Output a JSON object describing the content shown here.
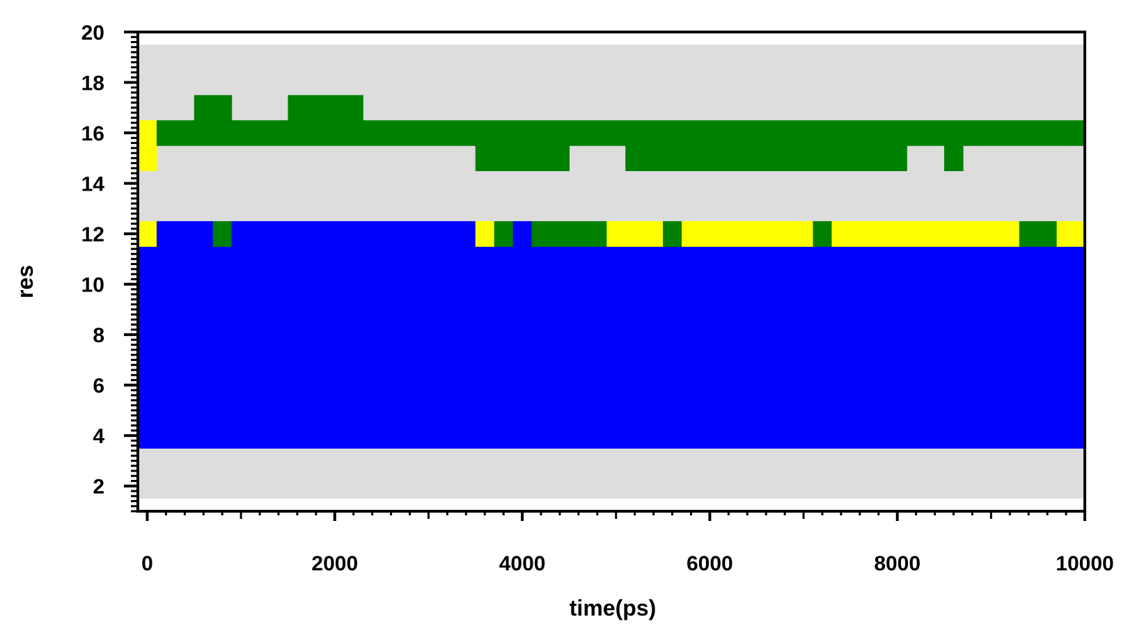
{
  "chart_data": {
    "type": "heatmap",
    "title": "",
    "xlabel": "time(ps)",
    "ylabel": "res",
    "xlim": [
      -100,
      10000
    ],
    "ylim": [
      1,
      20
    ],
    "x_ticks": [
      "0",
      "2000",
      "4000",
      "6000",
      "8000",
      "10000"
    ],
    "y_ticks": [
      "2",
      "4",
      "6",
      "8",
      "10",
      "12",
      "14",
      "16",
      "18",
      "20"
    ],
    "background_color": "#dddddd",
    "colors": {
      "blue": "#0000ff",
      "green": "#008000",
      "yellow": "#ffff00"
    },
    "data_extent": {
      "x": [
        -100,
        10000
      ],
      "y": [
        1.5,
        19.5
      ]
    },
    "residues": [
      {
        "res": 4,
        "segments": [
          {
            "x": [
              -100,
              10000
            ],
            "color": "blue"
          }
        ]
      },
      {
        "res": 5,
        "segments": [
          {
            "x": [
              -100,
              10000
            ],
            "color": "blue"
          }
        ]
      },
      {
        "res": 6,
        "segments": [
          {
            "x": [
              -100,
              10000
            ],
            "color": "blue"
          }
        ]
      },
      {
        "res": 7,
        "segments": [
          {
            "x": [
              -100,
              10000
            ],
            "color": "blue"
          }
        ]
      },
      {
        "res": 8,
        "segments": [
          {
            "x": [
              -100,
              10000
            ],
            "color": "blue"
          }
        ]
      },
      {
        "res": 9,
        "segments": [
          {
            "x": [
              -100,
              10000
            ],
            "color": "blue"
          }
        ]
      },
      {
        "res": 10,
        "segments": [
          {
            "x": [
              -100,
              10000
            ],
            "color": "blue"
          }
        ]
      },
      {
        "res": 11,
        "segments": [
          {
            "x": [
              -100,
              10000
            ],
            "color": "blue"
          }
        ]
      },
      {
        "res": 12,
        "segments": [
          {
            "x": [
              -100,
              100
            ],
            "color": "yellow"
          },
          {
            "x": [
              100,
              700
            ],
            "color": "blue"
          },
          {
            "x": [
              700,
              900
            ],
            "color": "green"
          },
          {
            "x": [
              900,
              3500
            ],
            "color": "blue"
          },
          {
            "x": [
              3500,
              3700
            ],
            "color": "yellow"
          },
          {
            "x": [
              3700,
              3900
            ],
            "color": "green"
          },
          {
            "x": [
              3900,
              4100
            ],
            "color": "blue"
          },
          {
            "x": [
              4100,
              4900
            ],
            "color": "green"
          },
          {
            "x": [
              4900,
              5500
            ],
            "color": "yellow"
          },
          {
            "x": [
              5500,
              5700
            ],
            "color": "green"
          },
          {
            "x": [
              5700,
              7100
            ],
            "color": "yellow"
          },
          {
            "x": [
              7100,
              7300
            ],
            "color": "green"
          },
          {
            "x": [
              7300,
              9300
            ],
            "color": "yellow"
          },
          {
            "x": [
              9300,
              9700
            ],
            "color": "green"
          },
          {
            "x": [
              9700,
              10000
            ],
            "color": "yellow"
          }
        ]
      },
      {
        "res": 15,
        "segments": [
          {
            "x": [
              -100,
              100
            ],
            "color": "yellow"
          },
          {
            "x": [
              3500,
              4500
            ],
            "color": "green"
          },
          {
            "x": [
              5100,
              8100
            ],
            "color": "green"
          },
          {
            "x": [
              8500,
              8700
            ],
            "color": "green"
          }
        ]
      },
      {
        "res": 16,
        "segments": [
          {
            "x": [
              -100,
              100
            ],
            "color": "yellow"
          },
          {
            "x": [
              100,
              10000
            ],
            "color": "green"
          }
        ]
      },
      {
        "res": 17,
        "segments": [
          {
            "x": [
              500,
              900
            ],
            "color": "green"
          },
          {
            "x": [
              1500,
              2300
            ],
            "color": "green"
          }
        ]
      }
    ]
  }
}
